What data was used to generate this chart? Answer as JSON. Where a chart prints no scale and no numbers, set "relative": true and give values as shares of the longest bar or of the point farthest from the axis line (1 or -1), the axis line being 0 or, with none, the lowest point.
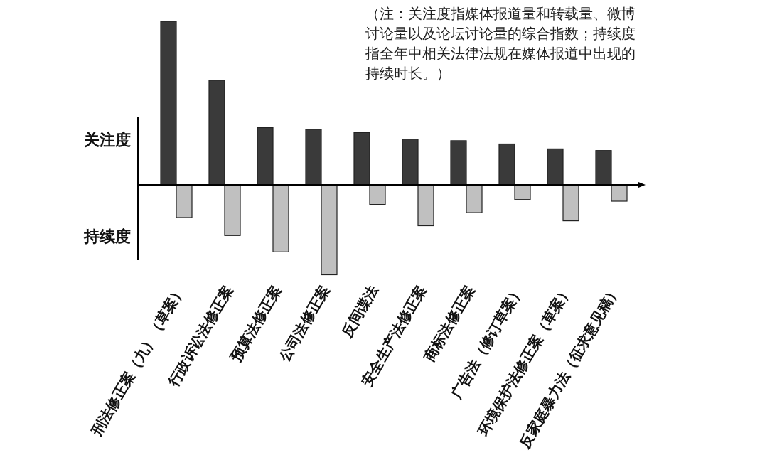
{
  "chart_data": {
    "type": "bar",
    "relative": true,
    "categories": [
      "刑法修正案（九）（草案）",
      "行政诉讼法修正案",
      "预算法修正案",
      "公司法修正案",
      "反间谍法",
      "安全生产法修正案",
      "商标法修正案",
      "广告法（修订草案）",
      "环境保护法修正案（草案）",
      "反家庭暴力法（征求意见稿）"
    ],
    "series": [
      {
        "name": "关注度",
        "color": "#3a3a3a",
        "values": [
          1,
          0.64,
          0.35,
          0.34,
          0.32,
          0.28,
          0.27,
          0.25,
          0.22,
          0.21
        ]
      },
      {
        "name": "持续度",
        "color": "#c0c0c0",
        "values": [
          -0.2,
          -0.31,
          -0.41,
          -0.55,
          -0.12,
          -0.25,
          -0.17,
          -0.09,
          -0.22,
          -0.1
        ]
      }
    ],
    "annotations": [
      "（注：关注度指媒体报道量和转载量、微博讨论量以及论坛讨论量的综合指数；持续度指全年中相关法律法规在媒体报道中出现的持续时长。）"
    ]
  }
}
